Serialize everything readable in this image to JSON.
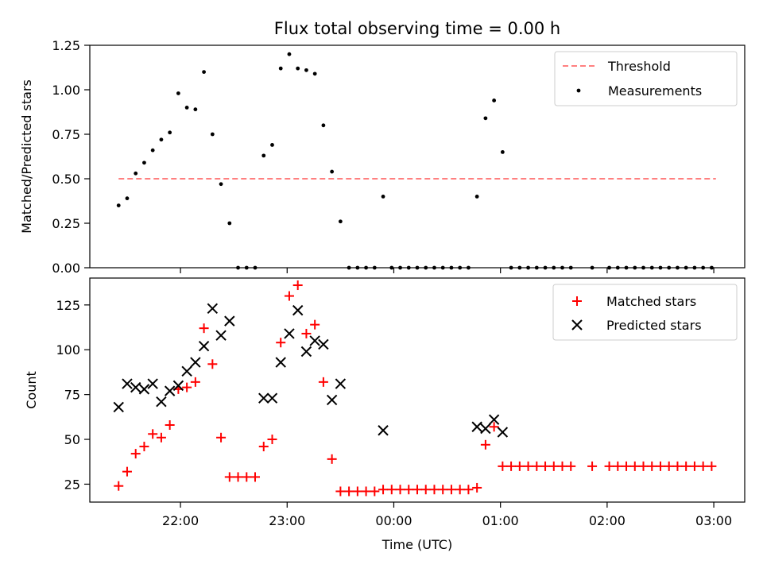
{
  "title": "Flux total observing time = 0.00 h",
  "chart_data": [
    {
      "type": "scatter",
      "ylabel": "Matched/Predicted stars",
      "ylim": [
        0,
        1.25
      ],
      "y_ticks": [
        "0.00",
        "0.25",
        "0.50",
        "0.75",
        "1.00",
        "1.25"
      ],
      "y_tick_values": [
        0,
        0.25,
        0.5,
        0.75,
        1.0,
        1.25
      ],
      "legend": {
        "placement": "top-right",
        "entries": [
          "Threshold",
          "Measurements"
        ]
      },
      "threshold": {
        "name": "Threshold",
        "value": 0.5,
        "x_start": 21.42,
        "x_end": 27.02,
        "color": "#ff8080"
      },
      "series": [
        {
          "name": "Measurements",
          "color": "#000000",
          "x": [
            21.42,
            21.5,
            21.58,
            21.66,
            21.74,
            21.82,
            21.9,
            21.98,
            22.06,
            22.14,
            22.22,
            22.3,
            22.38,
            22.46,
            22.54,
            22.62,
            22.7,
            22.78,
            22.86,
            22.94,
            23.02,
            23.1,
            23.18,
            23.26,
            23.34,
            23.42,
            23.5,
            23.58,
            23.66,
            23.74,
            23.82,
            23.9,
            23.98,
            24.06,
            24.14,
            24.22,
            24.3,
            24.38,
            24.46,
            24.54,
            24.62,
            24.7,
            24.78,
            24.86,
            24.94,
            25.02,
            25.1,
            25.18,
            25.26,
            25.34,
            25.42,
            25.5,
            25.58,
            25.66,
            25.86,
            26.02,
            26.1,
            26.18,
            26.26,
            26.34,
            26.42,
            26.5,
            26.58,
            26.66,
            26.74,
            26.82,
            26.9,
            26.98
          ],
          "y": [
            0.35,
            0.39,
            0.53,
            0.59,
            0.66,
            0.72,
            0.76,
            0.98,
            0.9,
            0.89,
            1.1,
            0.75,
            0.47,
            0.25,
            0.0,
            0.0,
            0.0,
            0.63,
            0.69,
            1.12,
            1.2,
            1.12,
            1.11,
            1.09,
            0.8,
            0.54,
            0.26,
            0.0,
            0.0,
            0.0,
            0.0,
            0.4,
            0.0,
            0.0,
            0.0,
            0.0,
            0.0,
            0.0,
            0.0,
            0.0,
            0.0,
            0.0,
            0.4,
            0.84,
            0.94,
            0.65,
            0.0,
            0.0,
            0.0,
            0.0,
            0.0,
            0.0,
            0.0,
            0.0,
            0.0,
            0.0,
            0.0,
            0.0,
            0.0,
            0.0,
            0.0,
            0.0,
            0.0,
            0.0,
            0.0,
            0.0,
            0.0,
            0.0
          ]
        }
      ]
    },
    {
      "type": "scatter",
      "xlabel": "Time (UTC)",
      "ylabel": "Count",
      "ylim": [
        15,
        140
      ],
      "y_ticks": [
        "25",
        "50",
        "75",
        "100",
        "125"
      ],
      "y_tick_values": [
        25,
        50,
        75,
        100,
        125
      ],
      "x_ticks": [
        "22:00",
        "23:00",
        "00:00",
        "01:00",
        "02:00",
        "03:00"
      ],
      "x_tick_values": [
        22,
        23,
        24,
        25,
        26,
        27
      ],
      "xlim": [
        21.15,
        27.29
      ],
      "legend": {
        "placement": "top-right",
        "entries": [
          "Matched stars",
          "Predicted stars"
        ]
      },
      "series": [
        {
          "name": "Matched stars",
          "color": "#ff0000",
          "marker": "plus",
          "x": [
            21.42,
            21.5,
            21.58,
            21.66,
            21.74,
            21.82,
            21.9,
            21.98,
            22.06,
            22.14,
            22.22,
            22.3,
            22.38,
            22.46,
            22.54,
            22.62,
            22.7,
            22.78,
            22.86,
            22.94,
            23.02,
            23.1,
            23.18,
            23.26,
            23.34,
            23.42,
            23.5,
            23.58,
            23.66,
            23.74,
            23.82,
            23.9,
            23.98,
            24.06,
            24.14,
            24.22,
            24.3,
            24.38,
            24.46,
            24.54,
            24.62,
            24.7,
            24.78,
            24.86,
            24.94,
            25.02,
            25.1,
            25.18,
            25.26,
            25.34,
            25.42,
            25.5,
            25.58,
            25.66,
            25.86,
            26.02,
            26.1,
            26.18,
            26.26,
            26.34,
            26.42,
            26.5,
            26.58,
            26.66,
            26.74,
            26.82,
            26.9,
            26.98
          ],
          "y": [
            24,
            32,
            42,
            46,
            53,
            51,
            58,
            78,
            79,
            82,
            112,
            92,
            51,
            29,
            29,
            29,
            29,
            46,
            50,
            104,
            130,
            136,
            109,
            114,
            82,
            39,
            21,
            21,
            21,
            21,
            21,
            22,
            22,
            22,
            22,
            22,
            22,
            22,
            22,
            22,
            22,
            22,
            23,
            47,
            57,
            35,
            35,
            35,
            35,
            35,
            35,
            35,
            35,
            35,
            35,
            35,
            35,
            35,
            35,
            35,
            35,
            35,
            35,
            35,
            35,
            35,
            35,
            35
          ]
        },
        {
          "name": "Predicted stars",
          "color": "#000000",
          "marker": "x",
          "x": [
            21.42,
            21.5,
            21.58,
            21.66,
            21.74,
            21.82,
            21.9,
            21.98,
            22.06,
            22.14,
            22.22,
            22.3,
            22.38,
            22.46,
            22.78,
            22.86,
            22.94,
            23.02,
            23.1,
            23.18,
            23.26,
            23.34,
            23.42,
            23.5,
            23.9,
            24.78,
            24.86,
            24.94,
            25.02
          ],
          "y": [
            68,
            81,
            79,
            78,
            81,
            71,
            77,
            80,
            88,
            93,
            102,
            123,
            108,
            116,
            73,
            73,
            93,
            109,
            122,
            99,
            105,
            103,
            72,
            81,
            55,
            57,
            56,
            61,
            54
          ]
        }
      ]
    }
  ]
}
